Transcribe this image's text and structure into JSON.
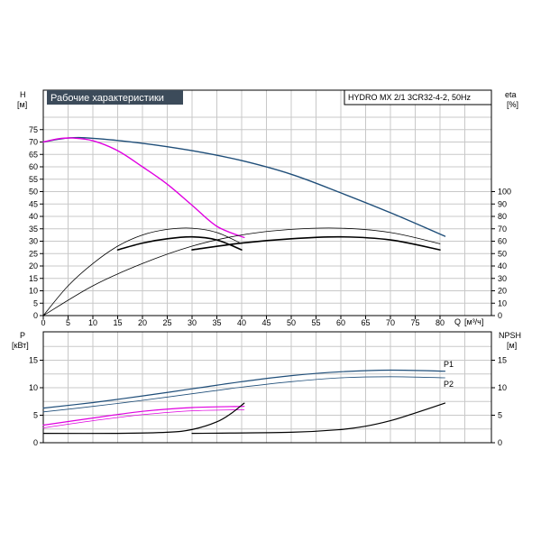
{
  "titles": {
    "main": "Рабочие характеристики",
    "model": "HYDRO MX 2/1 3CR32-4-2, 50Hz"
  },
  "labels": {
    "h_axis": "H",
    "h_unit": "[м]",
    "eta_axis": "eta",
    "eta_unit": "[%]",
    "q_axis": "Q",
    "q_unit": "[м³/ч]",
    "p_axis": "P",
    "p_unit": "[кВт]",
    "npsh_axis": "NPSH",
    "npsh_unit": "[м]",
    "p1": "P1",
    "p2": "P2"
  },
  "colors": {
    "blue": "#1f4e79",
    "magenta": "#e000e0",
    "black": "#000000",
    "title_bg": "#3c4b5a",
    "title_text": "#ffffff",
    "grid": "#c8c8c8"
  },
  "chart_data": [
    {
      "type": "line",
      "title": "Рабочие характеристики",
      "subtitle": "HYDRO MX 2/1 3CR32-4-2, 50Hz",
      "xlabel": "Q [м³/ч]",
      "ylabel": "H [м]",
      "y2label": "eta [%]",
      "xlim": [
        0,
        85
      ],
      "ylim": [
        0,
        80
      ],
      "y2_ticks": [
        0,
        10,
        20,
        30,
        40,
        50,
        60,
        70,
        80,
        90,
        100
      ],
      "x_ticks": [
        0,
        5,
        10,
        15,
        20,
        25,
        30,
        35,
        40,
        45,
        50,
        55,
        60,
        65,
        70,
        75,
        80
      ],
      "y_ticks": [
        0,
        5,
        10,
        15,
        20,
        25,
        30,
        35,
        40,
        45,
        50,
        55,
        60,
        65,
        70,
        75
      ],
      "grid": true,
      "series": [
        {
          "key": "head_two_pumps",
          "axis": "H",
          "color": "#1f4e79",
          "width": 1.4,
          "x": [
            0,
            5,
            10,
            20,
            30,
            40,
            50,
            60,
            70,
            81
          ],
          "y": [
            70,
            71.6,
            71.5,
            69.5,
            66.5,
            62.5,
            57,
            49.5,
            41.5,
            32
          ]
        },
        {
          "key": "head_one_pump",
          "axis": "H",
          "color": "#e000e0",
          "width": 1.4,
          "x": [
            0,
            3,
            6,
            10,
            15,
            20,
            25,
            30,
            35,
            40.5
          ],
          "y": [
            70,
            71.3,
            71.6,
            70.5,
            66.5,
            60,
            53,
            44.5,
            36,
            31.5
          ]
        },
        {
          "key": "eta_one_pump_a",
          "axis": "eta",
          "color": "#000000",
          "width": 0.8,
          "x": [
            0,
            5,
            10,
            15,
            20,
            25,
            30,
            35,
            40
          ],
          "y": [
            0,
            24,
            42,
            56,
            65,
            69.5,
            70.5,
            67,
            58
          ]
        },
        {
          "key": "eta_one_pump_b",
          "axis": "eta",
          "color": "#000000",
          "width": 1.6,
          "x": [
            15,
            20,
            25,
            30,
            35,
            40
          ],
          "y": [
            53,
            58.5,
            62,
            63.5,
            61,
            53
          ]
        },
        {
          "key": "eta_two_pumps_a",
          "axis": "eta",
          "color": "#000000",
          "width": 0.8,
          "x": [
            0,
            10,
            20,
            30,
            40,
            50,
            60,
            70,
            80
          ],
          "y": [
            0,
            24,
            42,
            56,
            65,
            69.5,
            70.5,
            67,
            58
          ]
        },
        {
          "key": "eta_two_pumps_b",
          "axis": "eta",
          "color": "#000000",
          "width": 1.6,
          "x": [
            30,
            40,
            50,
            60,
            70,
            80
          ],
          "y": [
            53,
            58.5,
            62,
            63.5,
            61,
            53
          ]
        }
      ]
    },
    {
      "type": "line",
      "xlabel": "Q [м³/ч]",
      "ylabel": "P [кВт]",
      "y2label": "NPSH [м]",
      "xlim": [
        0,
        85
      ],
      "ylim": [
        0,
        18
      ],
      "y_ticks": [
        0,
        5,
        10,
        15
      ],
      "y2_ticks": [
        0,
        5,
        10,
        15
      ],
      "grid": true,
      "series": [
        {
          "key": "P1",
          "name": "P1",
          "axis": "P",
          "color": "#1f4e79",
          "width": 1.2,
          "x": [
            0,
            10,
            20,
            30,
            40,
            50,
            60,
            70,
            81
          ],
          "y": [
            6.3,
            7.3,
            8.5,
            9.8,
            11.1,
            12.2,
            12.9,
            13.2,
            13.0
          ]
        },
        {
          "key": "P2",
          "name": "P2",
          "axis": "P",
          "color": "#1f4e79",
          "width": 0.8,
          "x": [
            0,
            10,
            20,
            30,
            40,
            50,
            60,
            70,
            81
          ],
          "y": [
            5.6,
            6.6,
            7.7,
            8.9,
            10.1,
            11.1,
            11.8,
            12.0,
            11.8
          ]
        },
        {
          "key": "P1_one_pump",
          "axis": "P",
          "color": "#e000e0",
          "width": 1.2,
          "x": [
            0,
            10,
            20,
            30,
            40.5
          ],
          "y": [
            3.2,
            4.5,
            5.7,
            6.4,
            6.6
          ]
        },
        {
          "key": "P2_one_pump",
          "axis": "P",
          "color": "#e000e0",
          "width": 0.8,
          "x": [
            0,
            10,
            20,
            30,
            40.5
          ],
          "y": [
            2.7,
            4.0,
            5.1,
            5.8,
            6.0
          ]
        },
        {
          "key": "npsh_one_pump",
          "axis": "NPSH",
          "color": "#000000",
          "width": 1.2,
          "x": [
            0,
            15,
            25,
            30,
            35,
            38,
            40.5
          ],
          "y": [
            1.7,
            1.7,
            1.9,
            2.4,
            3.8,
            5.4,
            7.2
          ]
        },
        {
          "key": "npsh_two_pumps",
          "axis": "NPSH",
          "color": "#000000",
          "width": 1.2,
          "x": [
            30,
            50,
            60,
            65,
            70,
            75,
            81
          ],
          "y": [
            1.7,
            1.9,
            2.4,
            3.0,
            4.0,
            5.4,
            7.2
          ]
        }
      ]
    }
  ]
}
